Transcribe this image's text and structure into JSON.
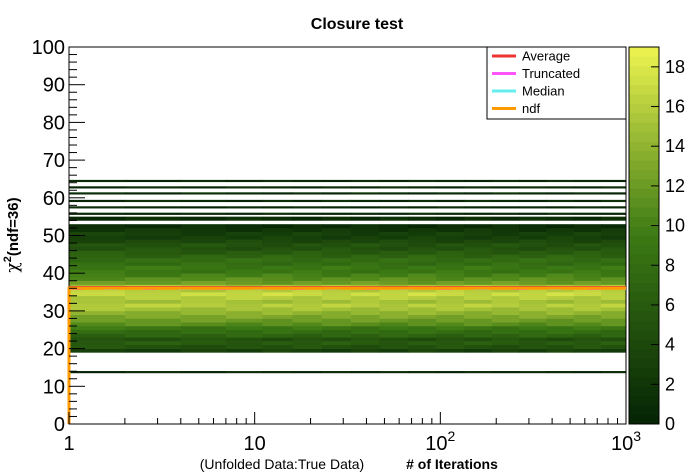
{
  "chart_data": {
    "type": "heatmap",
    "title": "Closure test",
    "xlabel_prefix": "(Unfolded Data:True Data)",
    "xlabel": "# of Iterations",
    "ylabel_chi": "χ",
    "ylabel_sup": "2",
    "ylabel_rest": "(ndf=36)",
    "x_scale": "log",
    "xlim": [
      1,
      1000
    ],
    "ylim": [
      0,
      100
    ],
    "zlim": [
      0,
      19
    ],
    "y_ticks": [
      "0",
      "10",
      "20",
      "30",
      "40",
      "50",
      "60",
      "70",
      "80",
      "90",
      "100"
    ],
    "x_ticks": [
      {
        "value": 1,
        "base": "1",
        "exp": ""
      },
      {
        "value": 10,
        "base": "10",
        "exp": ""
      },
      {
        "value": 100,
        "base": "10",
        "exp": "2"
      },
      {
        "value": 1000,
        "base": "10",
        "exp": "3"
      }
    ],
    "z_ticks": [
      "0",
      "2",
      "4",
      "6",
      "8",
      "10",
      "12",
      "14",
      "16",
      "18"
    ],
    "legend_position": "top-right",
    "series": [
      {
        "name": "Average",
        "color": "#ee3333",
        "y": 36.3
      },
      {
        "name": "Truncated",
        "color": "#ff55ff",
        "y": 35.8
      },
      {
        "name": "Median",
        "color": "#66eeee",
        "y": 35.8
      },
      {
        "name": "ndf",
        "color": "#ff9900",
        "y": 36
      }
    ],
    "y_profile": [
      [
        13.8,
        0.5
      ],
      [
        19.5,
        3
      ],
      [
        20.5,
        5
      ],
      [
        21.5,
        6
      ],
      [
        22.5,
        5
      ],
      [
        23.5,
        7
      ],
      [
        24.5,
        8
      ],
      [
        25.5,
        9
      ],
      [
        26.5,
        11
      ],
      [
        27.5,
        12
      ],
      [
        28.5,
        13
      ],
      [
        29.5,
        14
      ],
      [
        30.5,
        15
      ],
      [
        31.5,
        16
      ],
      [
        32.5,
        15
      ],
      [
        33.5,
        16
      ],
      [
        34.5,
        17
      ],
      [
        35.5,
        16
      ],
      [
        36.5,
        15
      ],
      [
        37.5,
        12
      ],
      [
        38.5,
        11
      ],
      [
        39.5,
        10
      ],
      [
        40.5,
        9
      ],
      [
        41.5,
        9
      ],
      [
        42.5,
        8
      ],
      [
        43.5,
        8
      ],
      [
        44.5,
        7
      ],
      [
        45.5,
        6
      ],
      [
        46.5,
        5
      ],
      [
        47.5,
        5
      ],
      [
        48.5,
        4
      ],
      [
        49.5,
        3
      ],
      [
        50.5,
        3
      ],
      [
        51.5,
        2
      ],
      [
        52.5,
        1
      ],
      [
        54.5,
        1
      ],
      [
        55.8,
        0.5
      ],
      [
        57.5,
        0.5
      ],
      [
        59.2,
        0.5
      ],
      [
        61.2,
        0.5
      ],
      [
        62.8,
        0.5
      ],
      [
        64.5,
        0.5
      ]
    ]
  }
}
